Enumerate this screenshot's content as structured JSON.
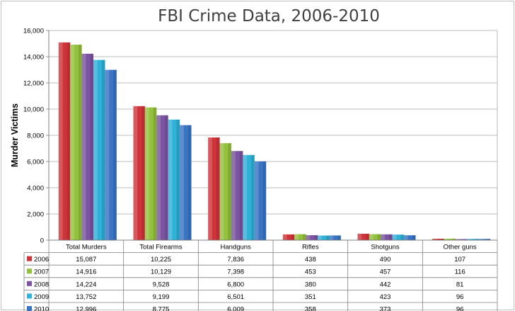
{
  "chart_data": {
    "type": "bar",
    "title": "FBI Crime Data, 2006-2010",
    "ylabel": "Murder Victims",
    "xlabel": "",
    "ylim": [
      0,
      16000
    ],
    "yticks": [
      "0",
      "2,000",
      "4,000",
      "6,000",
      "8,000",
      "10,000",
      "12,000",
      "14,000",
      "16,000"
    ],
    "grid": true,
    "legend": "data-table",
    "categories": [
      "Total Murders",
      "Total Firearms",
      "Handguns",
      "Rifles",
      "Shotguns",
      "Other guns"
    ],
    "series": [
      {
        "name": "2006",
        "color": "#d0343b",
        "values": [
          15087,
          10225,
          7836,
          438,
          490,
          107
        ],
        "labels": [
          "15,087",
          "10,225",
          "7,836",
          "438",
          "490",
          "107"
        ]
      },
      {
        "name": "2007",
        "color": "#94c13d",
        "values": [
          14916,
          10129,
          7398,
          453,
          457,
          116
        ],
        "labels": [
          "14,916",
          "10,129",
          "7,398",
          "453",
          "457",
          "116"
        ]
      },
      {
        "name": "2008",
        "color": "#7b55a1",
        "values": [
          14224,
          9528,
          6800,
          380,
          442,
          81
        ],
        "labels": [
          "14,224",
          "9,528",
          "6,800",
          "380",
          "442",
          "81"
        ]
      },
      {
        "name": "2009",
        "color": "#2fb1d8",
        "values": [
          13752,
          9199,
          6501,
          351,
          423,
          96
        ],
        "labels": [
          "13,752",
          "9,199",
          "6,501",
          "351",
          "423",
          "96"
        ]
      },
      {
        "name": "2010",
        "color": "#3a75c4",
        "values": [
          12996,
          8775,
          6009,
          358,
          373,
          96
        ],
        "labels": [
          "12,996",
          "8,775",
          "6,009",
          "358",
          "373",
          "96"
        ]
      }
    ]
  }
}
